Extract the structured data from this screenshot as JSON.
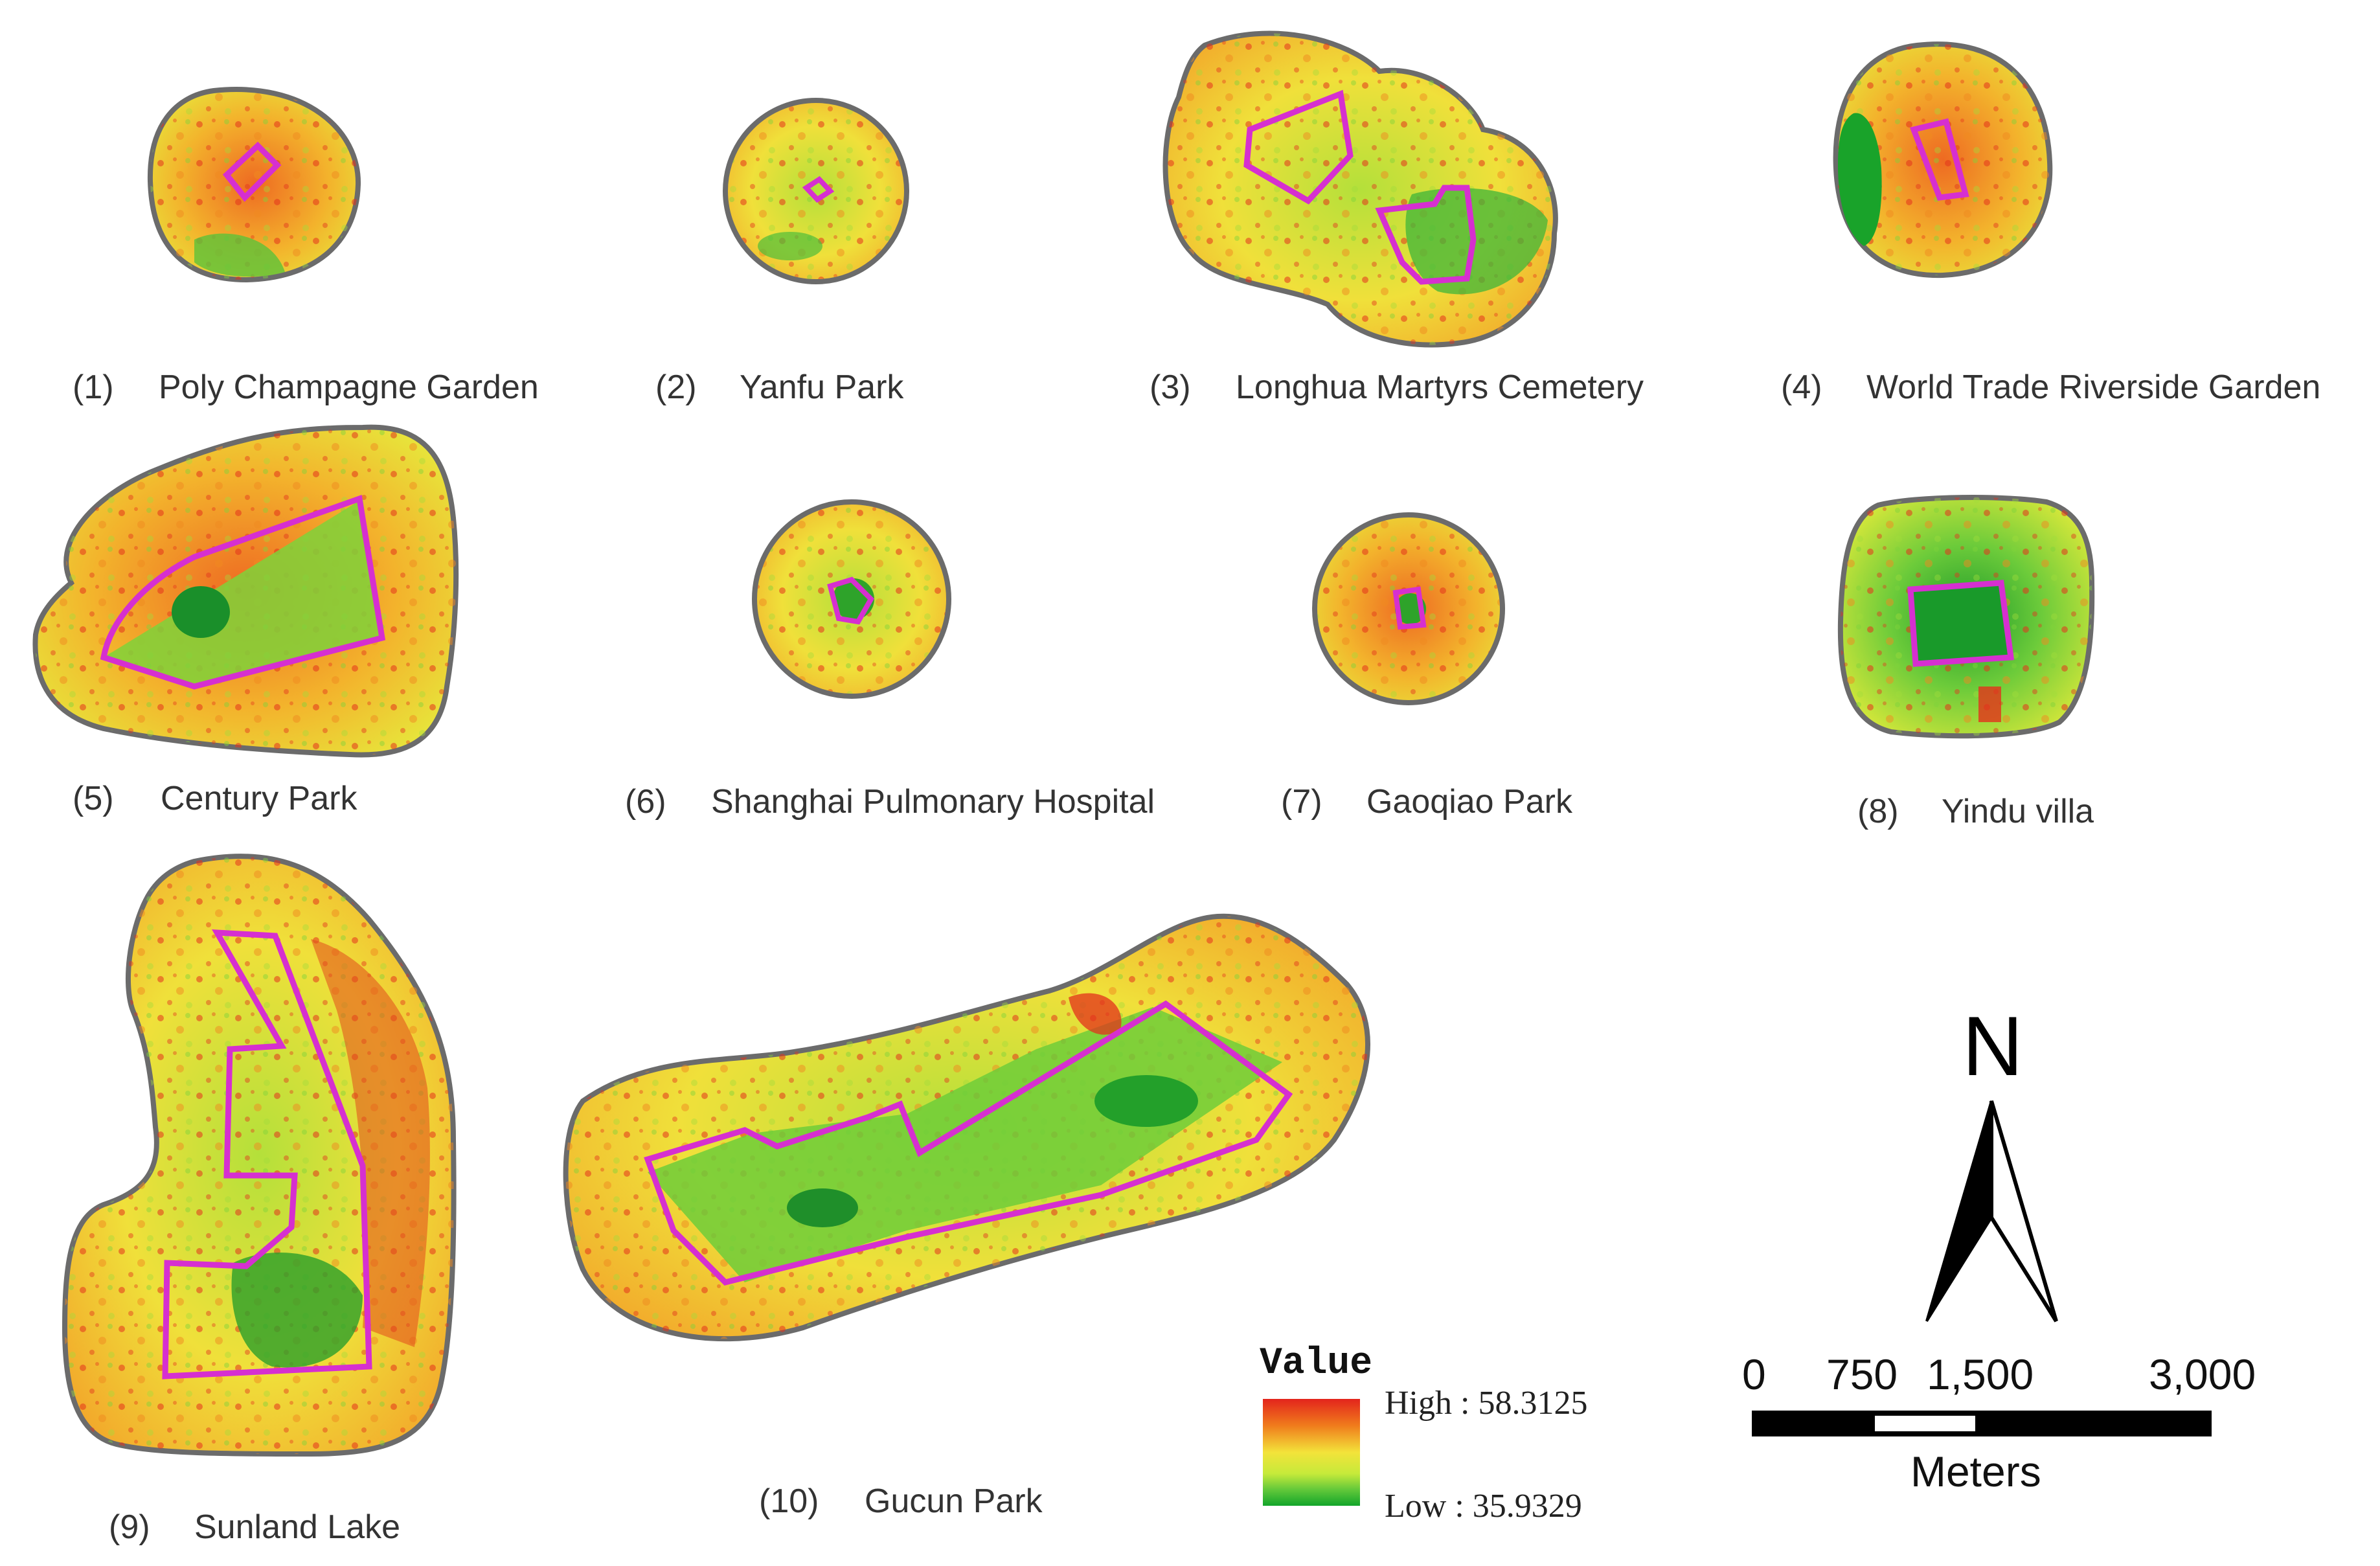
{
  "panels": [
    {
      "num": "(1)",
      "name": "Poly Champagne Garden"
    },
    {
      "num": "(2)",
      "name": "Yanfu Park"
    },
    {
      "num": "(3)",
      "name": "Longhua Martyrs Cemetery"
    },
    {
      "num": "(4)",
      "name": "World Trade Riverside Garden"
    },
    {
      "num": "(5)",
      "name": "Century Park"
    },
    {
      "num": "(6)",
      "name": "Shanghai Pulmonary Hospital"
    },
    {
      "num": "(7)",
      "name": "Gaoqiao Park"
    },
    {
      "num": "(8)",
      "name": "Yindu villa"
    },
    {
      "num": "(9)",
      "name": "Sunland Lake"
    },
    {
      "num": "(10)",
      "name": "Gucun Park"
    }
  ],
  "legend": {
    "title": "Value",
    "high": "High : 58.3125",
    "low": "Low : 35.9329",
    "colors": [
      "#e3241c",
      "#f07c1c",
      "#f3cf2a",
      "#d6ec3a",
      "#7fd23a",
      "#12a52a"
    ]
  },
  "north_arrow": {
    "label": "N"
  },
  "scale_bar": {
    "ticks": [
      "0",
      "750",
      "1,500",
      "3,000"
    ],
    "unit": "Meters"
  },
  "colors": {
    "boundary": "#d62fd0",
    "buffer_outline": "#6b6b6b",
    "high": "#e3241c",
    "mid": "#f3e33a",
    "low": "#12a52a"
  }
}
